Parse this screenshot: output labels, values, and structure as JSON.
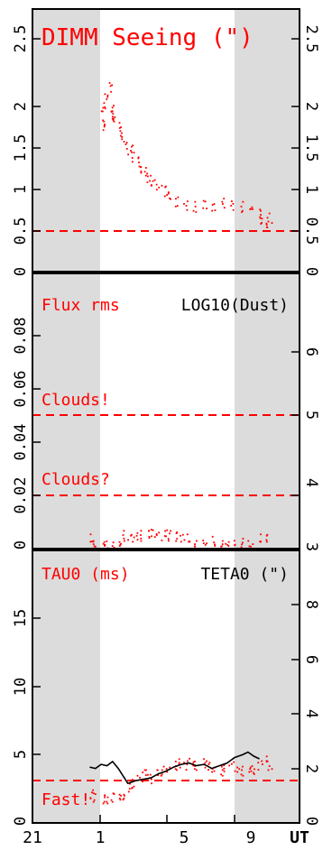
{
  "chart_data": [
    {
      "type": "scatter",
      "title": "DIMM Seeing (\")",
      "x_axis": {
        "range": [
          21,
          11
        ],
        "wrap_at": 24,
        "tick_labels": [
          "21",
          "1",
          "5",
          "9"
        ],
        "label": "UT"
      },
      "shaded_night_bands": [
        [
          21,
          1
        ],
        [
          8.7,
          11
        ]
      ],
      "left_axis": {
        "range": [
          0,
          2.9
        ],
        "tick_labels": [
          "0",
          "0.5",
          "1",
          "1.5",
          "2",
          "2.5"
        ]
      },
      "right_axis": {
        "range": [
          0,
          2.9
        ],
        "tick_labels": [
          "0",
          "0.5",
          "1",
          "1.5",
          "2",
          "2.5"
        ]
      },
      "threshold_lines": [
        {
          "y": 0.45,
          "label": ""
        }
      ],
      "series": [
        {
          "color": "#ff0000",
          "style": "dots",
          "axis": "left",
          "points": [
            [
              0.6,
              1.62
            ],
            [
              0.7,
              1.72
            ],
            [
              0.8,
              1.85
            ],
            [
              0.9,
              1.95
            ],
            [
              1.0,
              2.05
            ],
            [
              1.1,
              1.8
            ],
            [
              1.2,
              1.72
            ],
            [
              1.3,
              1.7
            ],
            [
              1.5,
              1.6
            ],
            [
              1.7,
              1.5
            ],
            [
              1.9,
              1.42
            ],
            [
              2.1,
              1.35
            ],
            [
              2.3,
              1.28
            ],
            [
              2.5,
              1.22
            ],
            [
              2.7,
              1.15
            ],
            [
              2.9,
              1.1
            ],
            [
              3.1,
              1.05
            ],
            [
              3.3,
              1.0
            ],
            [
              3.6,
              0.95
            ],
            [
              3.9,
              0.9
            ],
            [
              4.2,
              0.85
            ],
            [
              4.6,
              0.78
            ],
            [
              5.0,
              0.74
            ],
            [
              5.5,
              0.72
            ],
            [
              6.0,
              0.75
            ],
            [
              6.5,
              0.73
            ],
            [
              7.0,
              0.76
            ],
            [
              7.5,
              0.74
            ],
            [
              8.0,
              0.72
            ],
            [
              8.5,
              0.7
            ],
            [
              8.8,
              0.65
            ],
            [
              9.0,
              0.58
            ],
            [
              9.2,
              0.52
            ],
            [
              9.4,
              0.6
            ]
          ]
        }
      ]
    },
    {
      "type": "scatter",
      "title": "Flux rms",
      "title_right": "LOG10(Dust)",
      "x_axis": {
        "range": [
          21,
          11
        ],
        "wrap_at": 24
      },
      "shaded_night_bands": [
        [
          21,
          1
        ],
        [
          8.7,
          11
        ]
      ],
      "left_axis": {
        "range": [
          0,
          0.1
        ],
        "tick_labels": [
          "0",
          "0.02",
          "0.04",
          "0.06",
          "0.08"
        ]
      },
      "right_axis": {
        "range": [
          3,
          7.5
        ],
        "tick_labels": [
          "3",
          "4",
          "5",
          "6"
        ]
      },
      "threshold_lines": [
        {
          "y": 0.05,
          "label": "Clouds!"
        },
        {
          "y": 0.0195,
          "label": "Clouds?"
        }
      ],
      "series": [
        {
          "color": "#ff0000",
          "style": "dots",
          "axis": "left",
          "points": [
            [
              0.0,
              0.0035
            ],
            [
              0.3,
              0.003
            ],
            [
              0.6,
              0.0025
            ],
            [
              0.9,
              0.002
            ],
            [
              1.2,
              0.0015
            ],
            [
              1.5,
              0.0025
            ],
            [
              1.8,
              0.005
            ],
            [
              2.1,
              0.004
            ],
            [
              2.4,
              0.0045
            ],
            [
              2.7,
              0.005
            ],
            [
              3.0,
              0.0058
            ],
            [
              3.3,
              0.0065
            ],
            [
              3.6,
              0.0052
            ],
            [
              3.9,
              0.006
            ],
            [
              4.2,
              0.0048
            ],
            [
              4.5,
              0.0044
            ],
            [
              4.8,
              0.004
            ],
            [
              5.2,
              0.0035
            ],
            [
              5.6,
              0.003
            ],
            [
              6.0,
              0.0032
            ],
            [
              6.4,
              0.0028
            ],
            [
              6.8,
              0.003
            ],
            [
              7.2,
              0.0025
            ],
            [
              7.6,
              0.0022
            ],
            [
              8.0,
              0.0026
            ],
            [
              8.4,
              0.003
            ],
            [
              8.8,
              0.0035
            ],
            [
              9.2,
              0.004
            ]
          ]
        }
      ]
    },
    {
      "type": "line",
      "title": "TAU0 (ms)",
      "title_right": "TETA0 (\")",
      "x_axis": {
        "range": [
          21,
          11
        ],
        "wrap_at": 24
      },
      "shaded_night_bands": [
        [
          21,
          1
        ],
        [
          8.7,
          11
        ]
      ],
      "left_axis": {
        "range": [
          0,
          20
        ],
        "tick_labels": [
          "0",
          "5",
          "10",
          "15"
        ]
      },
      "right_axis": {
        "range": [
          0,
          10
        ],
        "tick_labels": [
          "0",
          "2",
          "4",
          "6",
          "8"
        ]
      },
      "threshold_lines": [
        {
          "y": 3.3,
          "label": "Fast!"
        }
      ],
      "series": [
        {
          "name": "TAU0 (ms)",
          "color": "#ff0000",
          "style": "dots",
          "axis": "left",
          "points": [
            [
              0.0,
              2.1
            ],
            [
              0.3,
              1.9
            ],
            [
              0.6,
              1.8
            ],
            [
              0.9,
              1.8
            ],
            [
              1.2,
              1.9
            ],
            [
              1.5,
              2.0
            ],
            [
              1.8,
              2.0
            ],
            [
              2.0,
              2.6
            ],
            [
              2.3,
              2.9
            ],
            [
              2.6,
              3.4
            ],
            [
              2.9,
              3.6
            ],
            [
              3.2,
              3.3
            ],
            [
              3.5,
              3.6
            ],
            [
              3.8,
              3.8
            ],
            [
              4.1,
              4.0
            ],
            [
              4.4,
              4.2
            ],
            [
              4.7,
              4.5
            ],
            [
              5.0,
              4.3
            ],
            [
              5.3,
              4.4
            ],
            [
              5.6,
              4.2
            ],
            [
              5.9,
              4.5
            ],
            [
              6.2,
              4.3
            ],
            [
              6.5,
              4.0
            ],
            [
              6.8,
              3.8
            ],
            [
              7.1,
              4.1
            ],
            [
              7.4,
              4.4
            ],
            [
              7.7,
              4.0
            ],
            [
              8.0,
              3.8
            ],
            [
              8.3,
              4.0
            ],
            [
              8.6,
              3.9
            ],
            [
              8.9,
              4.3
            ],
            [
              9.2,
              4.6
            ],
            [
              9.4,
              4.2
            ]
          ]
        },
        {
          "name": "TETA0 (\")",
          "color": "#000000",
          "style": "line",
          "axis": "right",
          "points": [
            [
              0.0,
              2.05
            ],
            [
              0.3,
              2.0
            ],
            [
              0.6,
              2.15
            ],
            [
              0.9,
              2.1
            ],
            [
              1.2,
              2.25
            ],
            [
              1.5,
              2.0
            ],
            [
              2.0,
              1.45
            ],
            [
              2.4,
              1.55
            ],
            [
              2.8,
              1.6
            ],
            [
              3.2,
              1.65
            ],
            [
              3.6,
              1.8
            ],
            [
              4.0,
              1.9
            ],
            [
              4.4,
              2.05
            ],
            [
              4.8,
              2.15
            ],
            [
              5.2,
              2.2
            ],
            [
              5.6,
              2.1
            ],
            [
              6.0,
              2.15
            ],
            [
              6.4,
              2.0
            ],
            [
              6.8,
              2.1
            ],
            [
              7.2,
              2.2
            ],
            [
              7.6,
              2.4
            ],
            [
              8.0,
              2.5
            ],
            [
              8.3,
              2.6
            ],
            [
              8.6,
              2.45
            ],
            [
              8.9,
              2.35
            ]
          ]
        }
      ]
    }
  ]
}
